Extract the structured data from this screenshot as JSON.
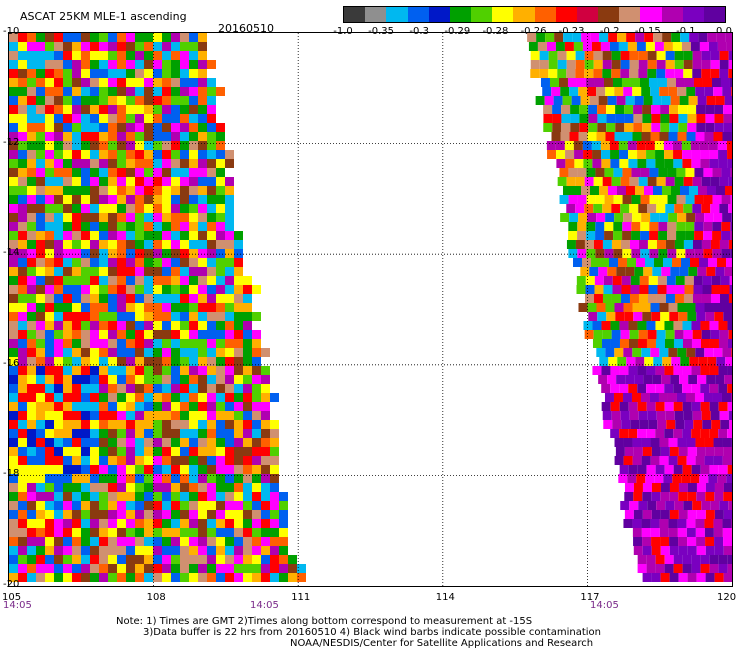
{
  "header": {
    "title": "ASCAT 25KM MLE-1 ascending",
    "date": "20160510"
  },
  "colorbar": {
    "colors": [
      "#3a3a3a",
      "#8f8f8f",
      "#00b8f0",
      "#0060f0",
      "#0018c8",
      "#00a000",
      "#50d000",
      "#ffff00",
      "#ffb000",
      "#ff6000",
      "#ff0000",
      "#d00040",
      "#8a3a10",
      "#d09070",
      "#ff00ff",
      "#b000b0",
      "#7a00c0",
      "#6000a0"
    ],
    "labels": [
      "-1.0",
      "-0.35",
      "-0.3",
      "-0.29",
      "-0.28",
      "-0.26",
      "-0.23",
      "-0.2",
      "-0.15",
      "-0.1",
      "0.0"
    ]
  },
  "map": {
    "lon_ticks": [
      "105",
      "108",
      "111",
      "114",
      "117",
      "120"
    ],
    "lat_ticks": [
      "-10",
      "-12",
      "-14",
      "-16",
      "-18",
      "-20"
    ],
    "swath_times": [
      "14:05",
      "14:05",
      "14:05"
    ],
    "lon_range": [
      105,
      120
    ],
    "lat_range": [
      -10,
      -20
    ]
  },
  "notes": {
    "line1": "Note: 1) Times are GMT 2)Times along bottom correspond to measurement at -15S",
    "line2": "3)Data buffer is 22 hrs from 20160510 4) Black wind barbs indicate possible contamination",
    "line3": "NOAA/NESDIS/Center for Satellite Applications and Research"
  }
}
